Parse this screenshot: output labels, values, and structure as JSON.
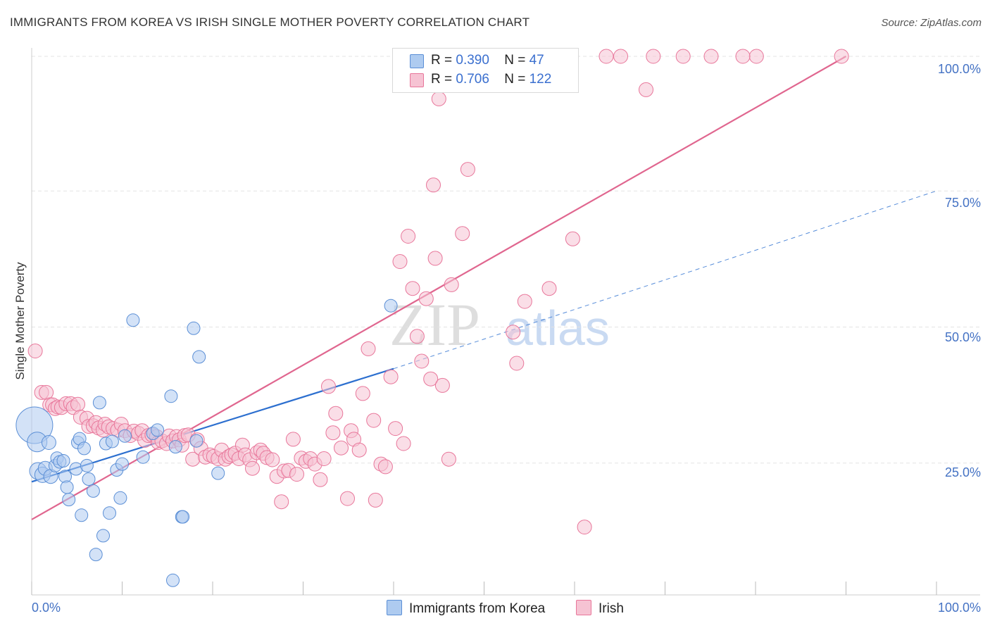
{
  "title": "IMMIGRANTS FROM KOREA VS IRISH SINGLE MOTHER POVERTY CORRELATION CHART",
  "source": "Source: ZipAtlas.com",
  "watermark": {
    "zip": "ZIP",
    "atlas": "atlas"
  },
  "colors": {
    "blue": "#5b8fd6",
    "blue_fill": "#aecbf0",
    "blue_line": "#2c6fcf",
    "pink": "#e8769a",
    "pink_fill": "#f6c3d3",
    "pink_line": "#e0668f",
    "tick_text": "#4472c4",
    "grid": "#e3e3e3"
  },
  "legend_top": {
    "rows": [
      {
        "r_label": "R =",
        "r_value": "0.390",
        "n_label": "N =",
        "n_value": "47"
      },
      {
        "r_label": "R =",
        "r_value": "0.706",
        "n_label": "N =",
        "n_value": "122"
      }
    ]
  },
  "legend_bottom": {
    "items": [
      "Immigrants from Korea",
      "Irish"
    ]
  },
  "chart_data": {
    "type": "scatter",
    "title": "IMMIGRANTS FROM KOREA VS IRISH SINGLE MOTHER POVERTY CORRELATION CHART",
    "xlabel": "",
    "ylabel": "Single Mother Poverty",
    "xlim": [
      0,
      100
    ],
    "ylim": [
      0,
      100
    ],
    "x_tick_labels": [
      "0.0%",
      "100.0%"
    ],
    "y_tick_labels": [
      "25.0%",
      "50.0%",
      "75.0%",
      "100.0%"
    ],
    "y_ticks": [
      25,
      50,
      75,
      100
    ],
    "grid": true,
    "legend_position": "top-center",
    "series": [
      {
        "name": "Immigrants from Korea",
        "r": 0.39,
        "n": 47,
        "trend": {
          "x": [
            0,
            40
          ],
          "y": [
            21,
            42
          ],
          "dashed_extension_to": [
            100,
            75
          ]
        },
        "points": [
          [
            0.3,
            31.5,
            26
          ],
          [
            0.6,
            28.4,
            14
          ],
          [
            0.7,
            23.0,
            12
          ],
          [
            1.2,
            22.3,
            11
          ],
          [
            1.5,
            23.5,
            10
          ],
          [
            1.9,
            28.3,
            10
          ],
          [
            2.1,
            22.0,
            10
          ],
          [
            2.6,
            24.0,
            9
          ],
          [
            2.8,
            25.4,
            9
          ],
          [
            3.1,
            24.7,
            9
          ],
          [
            3.5,
            24.9,
            9
          ],
          [
            3.7,
            22.0,
            9
          ],
          [
            3.9,
            20.0,
            9
          ],
          [
            4.1,
            17.7,
            9
          ],
          [
            4.9,
            23.4,
            9
          ],
          [
            5.1,
            28.3,
            9
          ],
          [
            5.3,
            29.0,
            9
          ],
          [
            5.5,
            14.8,
            9
          ],
          [
            5.8,
            27.2,
            9
          ],
          [
            6.1,
            24.0,
            9
          ],
          [
            6.3,
            21.5,
            9
          ],
          [
            6.8,
            19.3,
            9
          ],
          [
            7.1,
            7.5,
            9
          ],
          [
            7.5,
            35.7,
            9
          ],
          [
            7.9,
            11.0,
            9
          ],
          [
            8.2,
            28.1,
            9
          ],
          [
            8.6,
            15.2,
            9
          ],
          [
            8.9,
            28.5,
            9
          ],
          [
            9.4,
            23.2,
            9
          ],
          [
            9.8,
            18.0,
            9
          ],
          [
            10.0,
            24.3,
            9
          ],
          [
            10.3,
            29.5,
            9
          ],
          [
            11.2,
            51.0,
            9
          ],
          [
            12.3,
            25.6,
            9
          ],
          [
            13.4,
            30.0,
            9
          ],
          [
            13.9,
            30.6,
            9
          ],
          [
            15.4,
            36.9,
            9
          ],
          [
            15.6,
            2.7,
            9
          ],
          [
            15.9,
            27.5,
            9
          ],
          [
            16.6,
            14.5,
            9
          ],
          [
            16.7,
            14.5,
            9
          ],
          [
            17.9,
            49.5,
            9
          ],
          [
            18.2,
            28.6,
            9
          ],
          [
            18.5,
            44.2,
            9
          ],
          [
            20.6,
            22.6,
            9
          ],
          [
            39.7,
            53.7,
            9
          ],
          [
            29.0,
            11.0,
            0
          ]
        ]
      },
      {
        "name": "Irish",
        "r": 0.706,
        "n": 122,
        "trend": {
          "x": [
            0,
            90
          ],
          "y": [
            14,
            100
          ]
        },
        "points": [
          [
            0.4,
            45.3,
            10
          ],
          [
            1.1,
            37.6,
            10
          ],
          [
            1.6,
            37.6,
            10
          ],
          [
            2.0,
            35.3,
            10
          ],
          [
            2.3,
            35.3,
            10
          ],
          [
            2.6,
            34.6,
            10
          ],
          [
            2.9,
            34.9,
            10
          ],
          [
            3.3,
            34.8,
            10
          ],
          [
            3.8,
            35.5,
            10
          ],
          [
            4.3,
            35.5,
            10
          ],
          [
            4.6,
            34.8,
            10
          ],
          [
            5.1,
            35.4,
            10
          ],
          [
            5.4,
            33.0,
            10
          ],
          [
            6.1,
            32.8,
            10
          ],
          [
            6.3,
            31.3,
            10
          ],
          [
            6.8,
            31.4,
            10
          ],
          [
            7.1,
            32.0,
            10
          ],
          [
            7.4,
            31.0,
            10
          ],
          [
            7.9,
            30.6,
            10
          ],
          [
            8.1,
            31.7,
            10
          ],
          [
            8.5,
            31.2,
            10
          ],
          [
            9.0,
            30.9,
            10
          ],
          [
            9.5,
            30.6,
            10
          ],
          [
            9.9,
            31.7,
            10
          ],
          [
            10.3,
            30.5,
            10
          ],
          [
            10.9,
            29.6,
            10
          ],
          [
            11.3,
            30.4,
            10
          ],
          [
            11.8,
            30.0,
            10
          ],
          [
            12.2,
            30.5,
            10
          ],
          [
            12.5,
            28.7,
            10
          ],
          [
            12.9,
            29.6,
            10
          ],
          [
            13.3,
            29.7,
            10
          ],
          [
            13.8,
            29.4,
            10
          ],
          [
            14.0,
            28.3,
            10
          ],
          [
            14.4,
            28.6,
            10
          ],
          [
            14.9,
            28.1,
            10
          ],
          [
            15.2,
            29.5,
            10
          ],
          [
            15.6,
            28.6,
            10
          ],
          [
            16.0,
            29.4,
            10
          ],
          [
            16.3,
            28.8,
            10
          ],
          [
            16.6,
            27.8,
            10
          ],
          [
            16.9,
            29.6,
            10
          ],
          [
            17.3,
            29.7,
            10
          ],
          [
            17.8,
            25.2,
            10
          ],
          [
            18.3,
            28.8,
            10
          ],
          [
            18.7,
            27.2,
            10
          ],
          [
            19.2,
            25.6,
            10
          ],
          [
            19.7,
            26.0,
            10
          ],
          [
            20.1,
            25.7,
            10
          ],
          [
            20.6,
            25.3,
            10
          ],
          [
            21.0,
            26.9,
            10
          ],
          [
            21.4,
            25.2,
            10
          ],
          [
            21.8,
            25.7,
            10
          ],
          [
            22.1,
            26.0,
            10
          ],
          [
            22.5,
            26.3,
            10
          ],
          [
            22.9,
            25.3,
            10
          ],
          [
            23.3,
            27.8,
            10
          ],
          [
            23.6,
            26.0,
            10
          ],
          [
            24.1,
            25.1,
            10
          ],
          [
            24.4,
            23.5,
            10
          ],
          [
            24.9,
            26.4,
            10
          ],
          [
            25.3,
            26.9,
            10
          ],
          [
            25.6,
            26.3,
            10
          ],
          [
            26.0,
            25.5,
            10
          ],
          [
            26.6,
            25.1,
            10
          ],
          [
            27.1,
            22.0,
            10
          ],
          [
            27.6,
            17.3,
            10
          ],
          [
            27.9,
            23.0,
            10
          ],
          [
            28.4,
            23.1,
            10
          ],
          [
            28.9,
            28.9,
            10
          ],
          [
            29.3,
            22.4,
            10
          ],
          [
            29.8,
            25.4,
            10
          ],
          [
            30.3,
            24.8,
            10
          ],
          [
            30.8,
            25.3,
            10
          ],
          [
            31.3,
            24.3,
            10
          ],
          [
            31.9,
            21.4,
            10
          ],
          [
            32.3,
            25.3,
            10
          ],
          [
            32.8,
            38.7,
            10
          ],
          [
            33.3,
            30.1,
            10
          ],
          [
            33.6,
            33.7,
            10
          ],
          [
            34.2,
            27.3,
            10
          ],
          [
            34.9,
            17.9,
            10
          ],
          [
            35.3,
            30.5,
            10
          ],
          [
            35.6,
            28.9,
            10
          ],
          [
            36.2,
            26.9,
            10
          ],
          [
            36.6,
            37.4,
            10
          ],
          [
            37.2,
            45.7,
            10
          ],
          [
            37.8,
            32.4,
            10
          ],
          [
            38.0,
            17.6,
            10
          ],
          [
            38.6,
            24.3,
            10
          ],
          [
            39.1,
            23.8,
            10
          ],
          [
            39.7,
            40.5,
            10
          ],
          [
            40.2,
            30.9,
            10
          ],
          [
            40.7,
            61.9,
            10
          ],
          [
            41.1,
            28.1,
            10
          ],
          [
            41.6,
            66.6,
            10
          ],
          [
            42.1,
            56.9,
            10
          ],
          [
            42.6,
            48.0,
            10
          ],
          [
            43.1,
            43.4,
            10
          ],
          [
            43.6,
            55.0,
            10
          ],
          [
            44.1,
            40.1,
            10
          ],
          [
            44.6,
            62.5,
            10
          ],
          [
            45.0,
            92.1,
            10
          ],
          [
            45.4,
            38.9,
            10
          ],
          [
            46.1,
            25.2,
            10
          ],
          [
            46.4,
            57.6,
            10
          ],
          [
            47.6,
            67.1,
            10
          ],
          [
            48.2,
            79.0,
            10
          ],
          [
            44.4,
            76.1,
            10
          ],
          [
            53.6,
            43.0,
            10
          ],
          [
            53.2,
            48.8,
            10
          ],
          [
            54.5,
            54.5,
            10
          ],
          [
            57.2,
            56.9,
            10
          ],
          [
            59.8,
            66.1,
            10
          ],
          [
            61.1,
            12.6,
            10
          ],
          [
            63.5,
            100,
            10
          ],
          [
            65.1,
            100,
            10
          ],
          [
            67.9,
            93.8,
            10
          ],
          [
            68.7,
            100,
            10
          ],
          [
            72.0,
            100,
            10
          ],
          [
            75.1,
            100,
            10
          ],
          [
            80.1,
            100,
            10
          ],
          [
            89.5,
            100,
            10
          ],
          [
            78.6,
            100,
            10
          ],
          [
            48.6,
            100,
            10
          ],
          [
            56.4,
            100,
            10
          ]
        ]
      }
    ]
  }
}
